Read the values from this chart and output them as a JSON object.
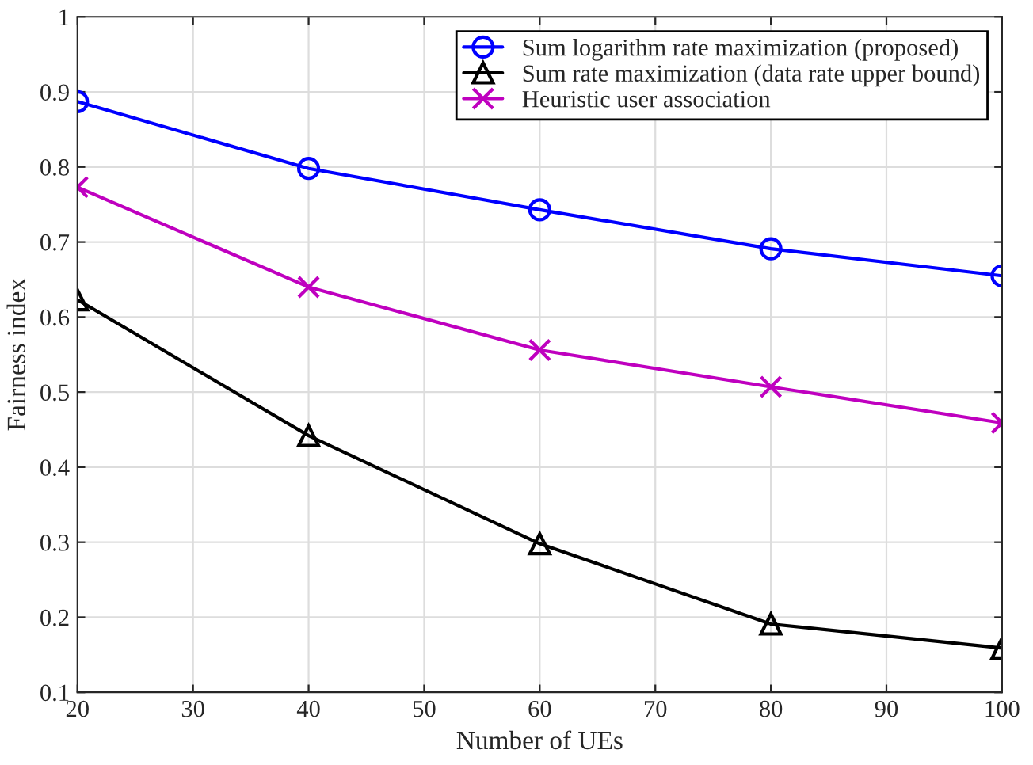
{
  "chart_data": {
    "type": "line",
    "xlabel": "Number of UEs",
    "ylabel": "Fairness index",
    "x": [
      20,
      40,
      60,
      80,
      100
    ],
    "series": [
      {
        "name": "Sum logarithm rate maximization (proposed)",
        "color": "#0000ff",
        "marker": "circle",
        "values": [
          0.887,
          0.798,
          0.743,
          0.691,
          0.655
        ]
      },
      {
        "name": "Sum rate maximization (data rate upper bound)",
        "color": "#000000",
        "marker": "triangle",
        "values": [
          0.623,
          0.442,
          0.298,
          0.191,
          0.159
        ]
      },
      {
        "name": "Heuristic user association",
        "color": "#bf00bf",
        "marker": "cross",
        "values": [
          0.773,
          0.64,
          0.556,
          0.507,
          0.459
        ]
      }
    ],
    "xlim": [
      20,
      100
    ],
    "xticks": [
      20,
      30,
      40,
      50,
      60,
      70,
      80,
      90,
      100
    ],
    "ylim": [
      0.1,
      1
    ],
    "yticks": [
      0.1,
      0.2,
      0.3,
      0.4,
      0.5,
      0.6,
      0.7,
      0.8,
      0.9,
      1
    ],
    "grid": true,
    "legend": "top right",
    "line_style": "solid"
  }
}
